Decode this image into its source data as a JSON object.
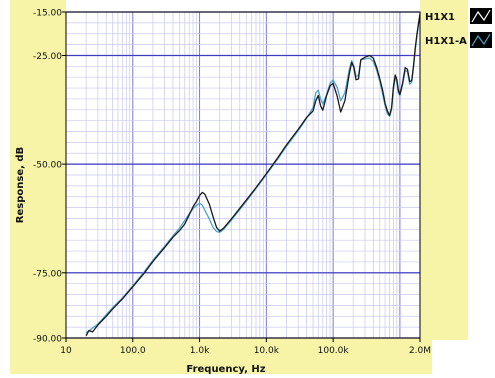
{
  "chart_data": {
    "type": "line",
    "xlabel": "Frequency, Hz",
    "ylabel": "Response, dB",
    "x_scale": "log",
    "xlim": [
      10,
      2000000
    ],
    "ylim": [
      -90,
      -15
    ],
    "grid": true,
    "legend_position": "right",
    "x_ticks": [
      {
        "value": 10,
        "label": "10"
      },
      {
        "value": 100,
        "label": "100.0"
      },
      {
        "value": 1000,
        "label": "1.0k"
      },
      {
        "value": 10000,
        "label": "10.0k"
      },
      {
        "value": 100000,
        "label": "100.0k"
      },
      {
        "value": 2000000,
        "label": "2.0M"
      }
    ],
    "y_ticks": [
      {
        "value": -15,
        "label": "-15.00"
      },
      {
        "value": -25,
        "label": "-25.00"
      },
      {
        "value": -50,
        "label": "-50.00"
      },
      {
        "value": -75,
        "label": "-75.00"
      },
      {
        "value": -90,
        "label": "-90.00"
      }
    ],
    "series": [
      {
        "name": "H1X1",
        "color": "#1a1a1a",
        "points": [
          [
            20,
            -89.5
          ],
          [
            22,
            -88.3
          ],
          [
            25,
            -88.6
          ],
          [
            30,
            -87.0
          ],
          [
            40,
            -85.0
          ],
          [
            50,
            -83.3
          ],
          [
            70,
            -81.0
          ],
          [
            100,
            -78.2
          ],
          [
            150,
            -75.0
          ],
          [
            200,
            -72.4
          ],
          [
            300,
            -69.2
          ],
          [
            400,
            -66.8
          ],
          [
            500,
            -65.3
          ],
          [
            600,
            -63.8
          ],
          [
            700,
            -61.7
          ],
          [
            800,
            -59.8
          ],
          [
            900,
            -58.6
          ],
          [
            1000,
            -57.2
          ],
          [
            1100,
            -56.5
          ],
          [
            1200,
            -56.9
          ],
          [
            1400,
            -59.2
          ],
          [
            1600,
            -62.2
          ],
          [
            1800,
            -64.6
          ],
          [
            2000,
            -65.4
          ],
          [
            2300,
            -64.7
          ],
          [
            3000,
            -62.6
          ],
          [
            5000,
            -58.3
          ],
          [
            7000,
            -55.4
          ],
          [
            10000,
            -52.2
          ],
          [
            15000,
            -48.4
          ],
          [
            20000,
            -45.6
          ],
          [
            30000,
            -42.0
          ],
          [
            40000,
            -39.3
          ],
          [
            50000,
            -37.8
          ],
          [
            55000,
            -35.4
          ],
          [
            60000,
            -34.2
          ],
          [
            65000,
            -36.6
          ],
          [
            70000,
            -37.6
          ],
          [
            80000,
            -34.2
          ],
          [
            90000,
            -32.0
          ],
          [
            100000,
            -31.4
          ],
          [
            115000,
            -34.4
          ],
          [
            130000,
            -38.0
          ],
          [
            150000,
            -35.4
          ],
          [
            175000,
            -29.2
          ],
          [
            190000,
            -26.6
          ],
          [
            205000,
            -27.8
          ],
          [
            220000,
            -30.6
          ],
          [
            240000,
            -30.4
          ],
          [
            260000,
            -26.0
          ],
          [
            300000,
            -25.4
          ],
          [
            350000,
            -25.0
          ],
          [
            400000,
            -25.6
          ],
          [
            450000,
            -27.8
          ],
          [
            500000,
            -30.4
          ],
          [
            550000,
            -33.0
          ],
          [
            600000,
            -36.0
          ],
          [
            650000,
            -37.8
          ],
          [
            700000,
            -38.8
          ],
          [
            750000,
            -37.0
          ],
          [
            800000,
            -32.2
          ],
          [
            850000,
            -29.5
          ],
          [
            900000,
            -30.5
          ],
          [
            950000,
            -33.0
          ],
          [
            1000000,
            -34.0
          ],
          [
            1100000,
            -31.2
          ],
          [
            1200000,
            -27.8
          ],
          [
            1300000,
            -28.2
          ],
          [
            1400000,
            -31.0
          ],
          [
            1500000,
            -30.8
          ],
          [
            1600000,
            -27.4
          ],
          [
            1700000,
            -23.2
          ],
          [
            1800000,
            -20.2
          ],
          [
            1900000,
            -17.6
          ],
          [
            2000000,
            -15.4
          ]
        ]
      },
      {
        "name": "H1X1-A",
        "color": "#4aa3c8",
        "points": [
          [
            20,
            -88.8
          ],
          [
            30,
            -86.8
          ],
          [
            50,
            -83.0
          ],
          [
            70,
            -80.8
          ],
          [
            100,
            -78.0
          ],
          [
            150,
            -74.7
          ],
          [
            200,
            -72.1
          ],
          [
            300,
            -68.9
          ],
          [
            400,
            -66.5
          ],
          [
            500,
            -64.7
          ],
          [
            600,
            -63.0
          ],
          [
            700,
            -61.4
          ],
          [
            800,
            -60.2
          ],
          [
            900,
            -59.5
          ],
          [
            1000,
            -59.0
          ],
          [
            1100,
            -59.4
          ],
          [
            1200,
            -60.6
          ],
          [
            1400,
            -62.6
          ],
          [
            1600,
            -64.6
          ],
          [
            1800,
            -65.5
          ],
          [
            2000,
            -65.7
          ],
          [
            2300,
            -65.0
          ],
          [
            3000,
            -62.9
          ],
          [
            5000,
            -58.6
          ],
          [
            7000,
            -55.6
          ],
          [
            10000,
            -52.4
          ],
          [
            15000,
            -48.7
          ],
          [
            20000,
            -45.9
          ],
          [
            30000,
            -42.3
          ],
          [
            40000,
            -39.5
          ],
          [
            50000,
            -37.0
          ],
          [
            55000,
            -33.6
          ],
          [
            60000,
            -33.0
          ],
          [
            65000,
            -35.0
          ],
          [
            70000,
            -36.2
          ],
          [
            80000,
            -34.0
          ],
          [
            90000,
            -31.4
          ],
          [
            100000,
            -30.6
          ],
          [
            115000,
            -32.4
          ],
          [
            130000,
            -35.4
          ],
          [
            150000,
            -33.6
          ],
          [
            175000,
            -28.2
          ],
          [
            190000,
            -26.2
          ],
          [
            205000,
            -27.4
          ],
          [
            220000,
            -29.8
          ],
          [
            240000,
            -29.6
          ],
          [
            260000,
            -26.0
          ],
          [
            300000,
            -25.8
          ],
          [
            350000,
            -25.6
          ],
          [
            400000,
            -26.4
          ],
          [
            450000,
            -28.4
          ],
          [
            500000,
            -31.0
          ],
          [
            550000,
            -33.8
          ],
          [
            600000,
            -36.6
          ],
          [
            650000,
            -38.4
          ],
          [
            700000,
            -39.0
          ],
          [
            750000,
            -37.4
          ],
          [
            800000,
            -33.0
          ],
          [
            850000,
            -30.0
          ],
          [
            900000,
            -31.2
          ],
          [
            950000,
            -33.6
          ],
          [
            1000000,
            -34.2
          ],
          [
            1100000,
            -31.6
          ],
          [
            1200000,
            -28.4
          ],
          [
            1300000,
            -28.8
          ],
          [
            1400000,
            -31.6
          ],
          [
            1500000,
            -31.2
          ],
          [
            1600000,
            -27.8
          ],
          [
            1700000,
            -23.6
          ],
          [
            1800000,
            -20.6
          ],
          [
            1900000,
            -18.0
          ],
          [
            2000000,
            -16.0
          ]
        ]
      }
    ]
  }
}
